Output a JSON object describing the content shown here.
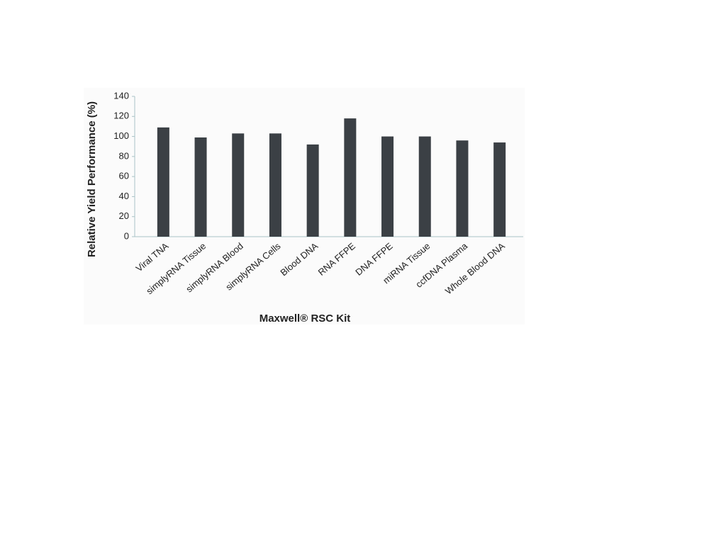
{
  "chart_data": {
    "type": "bar",
    "x_label": "Maxwell® RSC Kit",
    "y_label": "Relative Yield Performance (%)",
    "categories": [
      "Viral TNA",
      "simplyRNA Tissue",
      "simplyRNA Blood",
      "simplyRNA Cells",
      "Blood DNA",
      "RNA FFPE",
      "DNA FFPE",
      "miRNA Tissue",
      "ccfDNA Plasma",
      "Whole Blood DNA"
    ],
    "values": [
      109,
      99,
      103,
      103,
      92,
      118,
      100,
      100,
      96,
      94
    ],
    "color": "#3b4045",
    "ylim": [
      0,
      140
    ],
    "yticks": [
      0,
      20,
      40,
      60,
      80,
      100,
      120,
      140
    ],
    "grid": false
  }
}
